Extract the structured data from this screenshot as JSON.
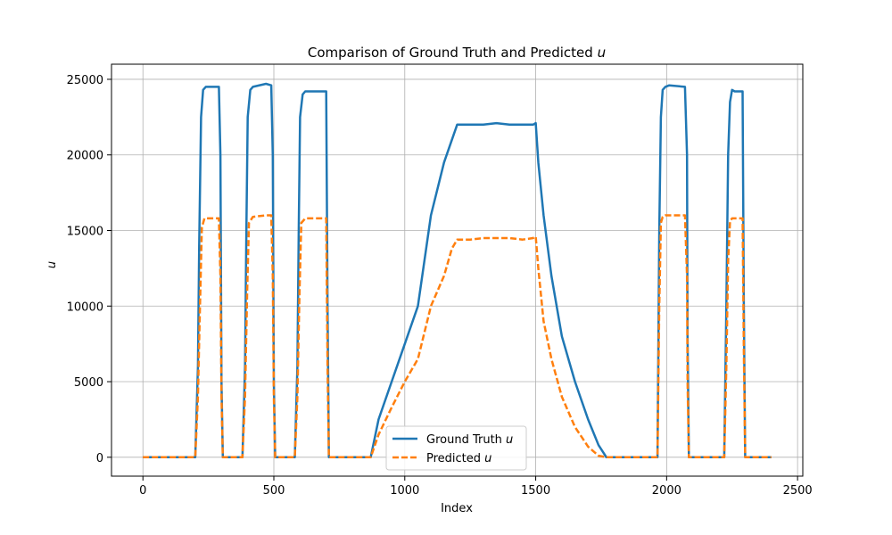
{
  "chart_data": {
    "type": "line",
    "title": "Comparison of Ground Truth and Predicted u",
    "title_parts": {
      "prefix": "Comparison of Ground Truth and Predicted ",
      "var": "u"
    },
    "xlabel": "Index",
    "ylabel": "u",
    "xlim": [
      -120,
      2520
    ],
    "ylim": [
      -1250,
      26000
    ],
    "xticks": [
      0,
      500,
      1000,
      1500,
      2000,
      2500
    ],
    "yticks": [
      0,
      5000,
      10000,
      15000,
      20000,
      25000
    ],
    "grid": true,
    "legend_position": "lower-center",
    "series": [
      {
        "name": "Ground Truth u",
        "name_prefix": "Ground Truth ",
        "name_var": "u",
        "color": "#1f77b4",
        "style": "solid",
        "x": [
          0,
          200,
          210,
          215,
          222,
          230,
          240,
          290,
          296,
          300,
          305,
          380,
          390,
          395,
          400,
          410,
          420,
          470,
          490,
          496,
          500,
          505,
          580,
          590,
          595,
          600,
          610,
          620,
          700,
          705,
          710,
          870,
          900,
          950,
          1000,
          1050,
          1100,
          1150,
          1180,
          1200,
          1250,
          1300,
          1350,
          1400,
          1450,
          1490,
          1500,
          1510,
          1530,
          1560,
          1600,
          1650,
          1700,
          1740,
          1770,
          1800,
          1965,
          1972,
          1978,
          1985,
          1995,
          2010,
          2070,
          2078,
          2080,
          2085,
          2220,
          2228,
          2235,
          2242,
          2250,
          2260,
          2290,
          2295,
          2300,
          2400
        ],
        "y": [
          0,
          0,
          6000,
          14000,
          22500,
          24300,
          24500,
          24500,
          20000,
          5000,
          0,
          0,
          6000,
          15000,
          22500,
          24300,
          24500,
          24700,
          24600,
          20000,
          5000,
          0,
          0,
          6000,
          15000,
          22500,
          24000,
          24200,
          24200,
          10000,
          0,
          0,
          2500,
          5000,
          7500,
          10000,
          16000,
          19500,
          21000,
          22000,
          22000,
          22000,
          22100,
          22000,
          22000,
          22000,
          22100,
          19500,
          16000,
          12000,
          8000,
          5000,
          2500,
          800,
          0,
          0,
          0,
          15000,
          22500,
          24300,
          24500,
          24600,
          24500,
          20000,
          8000,
          0,
          0,
          10000,
          20000,
          23500,
          24300,
          24200,
          24200,
          10000,
          0,
          0
        ]
      },
      {
        "name": "Predicted u",
        "name_prefix": "Predicted ",
        "name_var": "u",
        "color": "#ff7f0e",
        "style": "dashed",
        "x": [
          0,
          200,
          210,
          218,
          225,
          235,
          290,
          296,
          300,
          305,
          380,
          390,
          398,
          405,
          420,
          470,
          490,
          496,
          500,
          505,
          580,
          590,
          598,
          605,
          620,
          700,
          705,
          710,
          870,
          900,
          950,
          1000,
          1050,
          1100,
          1150,
          1180,
          1200,
          1250,
          1300,
          1350,
          1400,
          1450,
          1490,
          1500,
          1510,
          1530,
          1560,
          1600,
          1650,
          1700,
          1740,
          1770,
          1800,
          1965,
          1972,
          1978,
          1985,
          1995,
          2070,
          2078,
          2080,
          2085,
          2220,
          2228,
          2235,
          2242,
          2250,
          2290,
          2295,
          2300,
          2400
        ],
        "y": [
          0,
          0,
          4000,
          10000,
          15200,
          15800,
          15800,
          12000,
          4000,
          0,
          0,
          4000,
          11000,
          15500,
          15900,
          16000,
          16000,
          12000,
          4000,
          0,
          0,
          4000,
          11000,
          15500,
          15800,
          15800,
          6000,
          0,
          0,
          1500,
          3300,
          5000,
          6500,
          10000,
          12000,
          13800,
          14400,
          14400,
          14500,
          14500,
          14500,
          14400,
          14500,
          14600,
          12500,
          9000,
          6500,
          4000,
          2000,
          700,
          100,
          0,
          0,
          0,
          10000,
          15500,
          15900,
          16000,
          16000,
          12000,
          5000,
          0,
          0,
          6000,
          13000,
          15600,
          15800,
          15800,
          7000,
          0,
          0
        ]
      }
    ]
  }
}
